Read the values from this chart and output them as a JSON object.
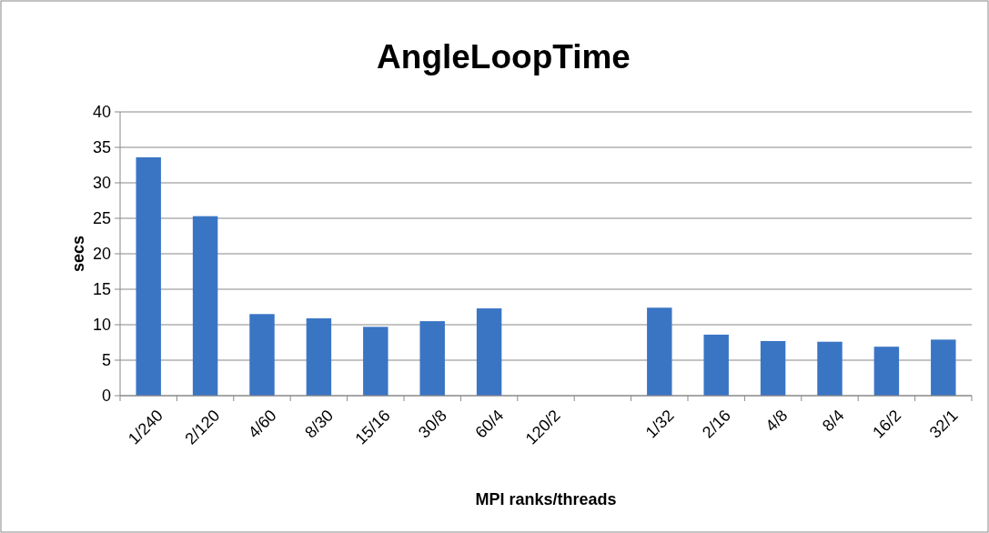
{
  "chart_data": {
    "type": "bar",
    "title": "AngleLoopTime",
    "xlabel": "MPI ranks/threads",
    "ylabel": "secs",
    "categories": [
      "1/240",
      "2/120",
      "4/60",
      "8/30",
      "15/16",
      "30/8",
      "60/4",
      "120/2",
      null,
      "1/32",
      "2/16",
      "4/8",
      "8/4",
      "16/2",
      "32/1"
    ],
    "series": [
      {
        "color": "#3a75c4",
        "values": [
          33.6,
          25.3,
          11.5,
          10.9,
          9.7,
          10.5,
          12.3,
          null,
          null,
          12.4,
          8.6,
          7.7,
          7.6,
          6.9,
          7.9
        ]
      }
    ],
    "ylim": [
      0,
      40
    ],
    "yticks": [
      0,
      5,
      10,
      15,
      20,
      25,
      30,
      35,
      40
    ],
    "grid": "y"
  }
}
